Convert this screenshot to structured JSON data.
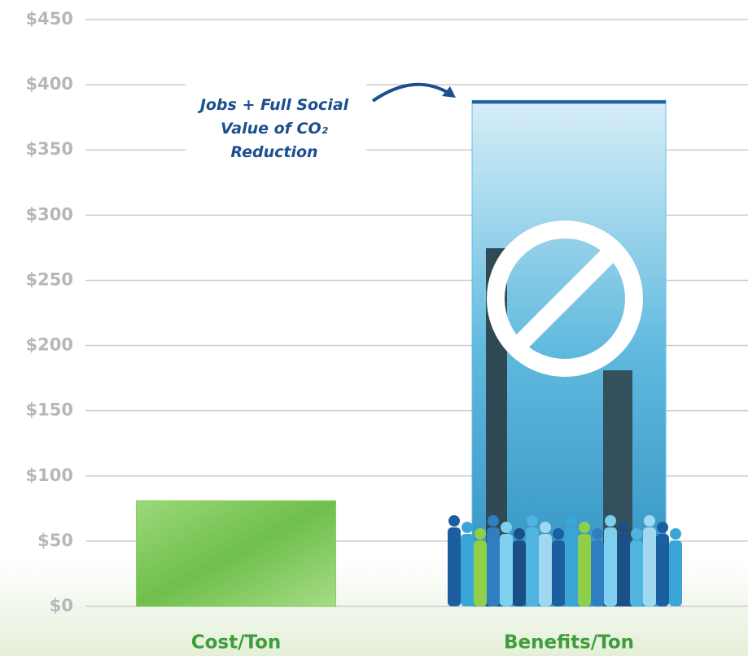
{
  "chart_data": {
    "type": "bar",
    "categories": [
      "Cost/Ton",
      "Benefits/Ton"
    ],
    "values": [
      81,
      388
    ],
    "colors": [
      "#86cd62",
      "#63bde4"
    ],
    "ylim": [
      0,
      450
    ],
    "yticks": [
      {
        "value": 0,
        "label": "$0"
      },
      {
        "value": 50,
        "label": "$50"
      },
      {
        "value": 100,
        "label": "$100"
      },
      {
        "value": 150,
        "label": "$150"
      },
      {
        "value": 200,
        "label": "$200"
      },
      {
        "value": 250,
        "label": "$250"
      },
      {
        "value": 300,
        "label": "$300"
      },
      {
        "value": 350,
        "label": "$350"
      },
      {
        "value": 400,
        "label": "$400"
      },
      {
        "value": 450,
        "label": "$450"
      }
    ],
    "grid": true,
    "annotation": [
      "Jobs + Full Social",
      "Value of CO₂",
      "Reduction"
    ]
  }
}
